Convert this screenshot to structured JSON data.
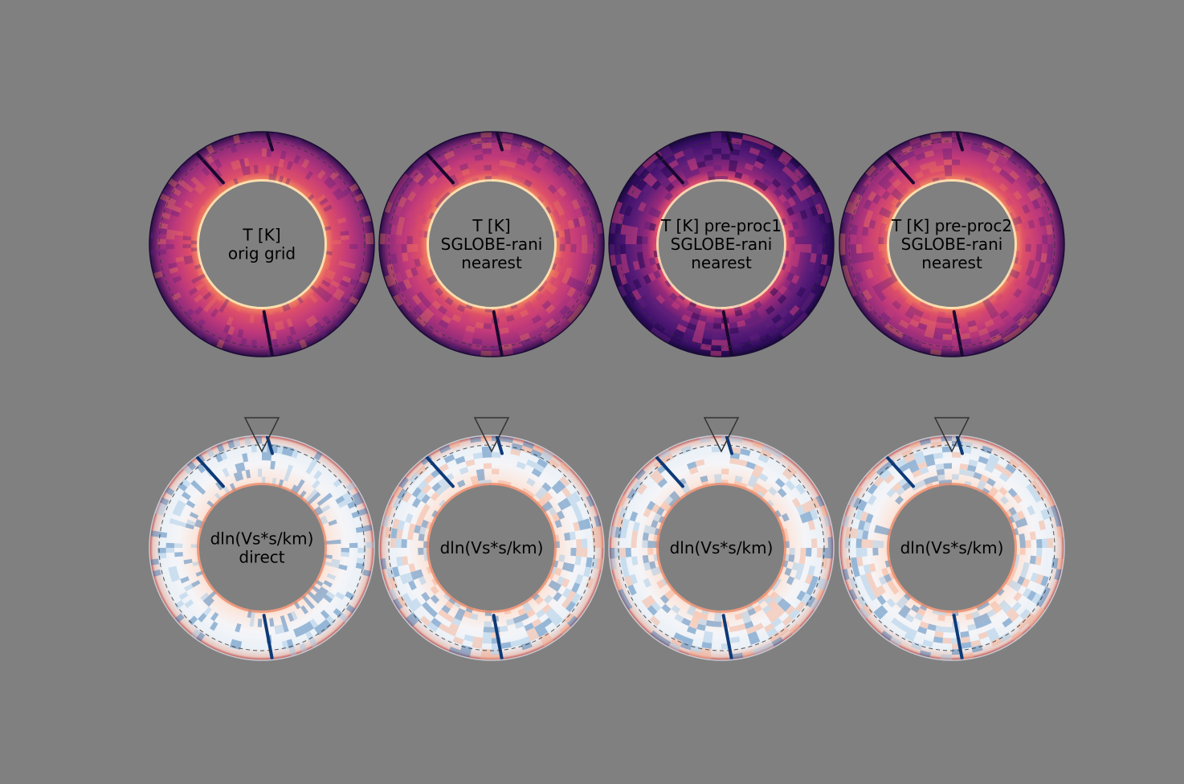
{
  "figure": {
    "background": "#808080",
    "hole_color": "#808080",
    "rows": [
      {
        "colormap": "magma",
        "panels": [
          {
            "label_lines": [
              "T [K]",
              "orig grid"
            ],
            "style": "smooth"
          },
          {
            "label_lines": [
              "T [K]",
              "SGLOBE-rani",
              "nearest"
            ],
            "style": "blocky"
          },
          {
            "label_lines": [
              "T [K] pre-proc1",
              "SGLOBE-rani",
              "nearest"
            ],
            "style": "blocky-dark"
          },
          {
            "label_lines": [
              "T [K] pre-proc2",
              "SGLOBE-rani",
              "nearest"
            ],
            "style": "blocky"
          }
        ]
      },
      {
        "colormap": "RdBu",
        "marker": "down-triangle",
        "panels": [
          {
            "label_lines": [
              "dln(Vs*s/km)",
              "direct"
            ],
            "style": "smooth"
          },
          {
            "label_lines": [
              "dln(Vs*s/km)"
            ],
            "style": "blocky"
          },
          {
            "label_lines": [
              "dln(Vs*s/km)"
            ],
            "style": "blocky-dark"
          },
          {
            "label_lines": [
              "dln(Vs*s/km)"
            ],
            "style": "blocky"
          }
        ]
      }
    ]
  }
}
